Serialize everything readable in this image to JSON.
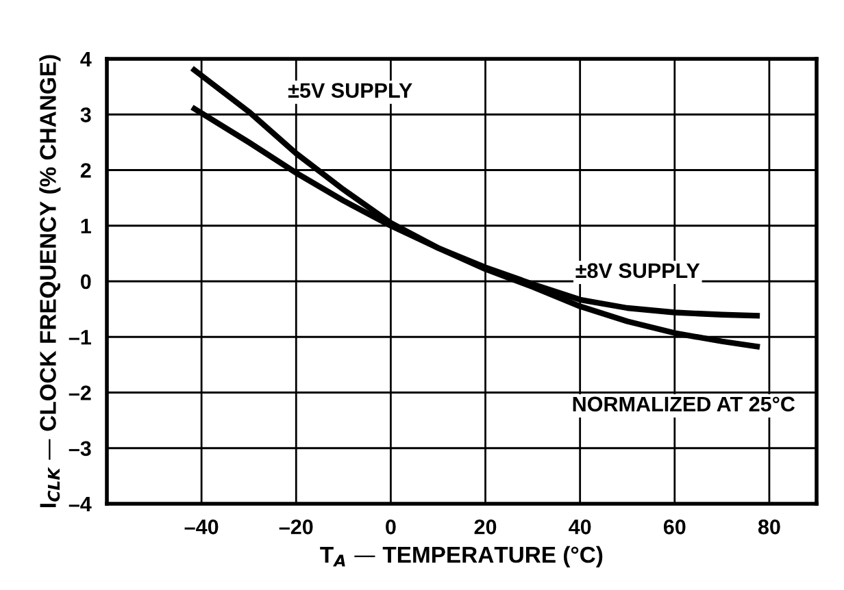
{
  "chart_data": {
    "type": "line",
    "xlabel": "T$_{A}$ — TEMPERATURE (°C)",
    "ylabel": "I$_{CLK}$ — CLOCK FREQUENCY (% CHANGE)",
    "annotations": [
      "NORMALIZED AT 25°C"
    ],
    "xlim": [
      -60,
      90
    ],
    "ylim": [
      -4,
      4
    ],
    "xticks": [
      {
        "value": -40,
        "label": "–40"
      },
      {
        "value": -20,
        "label": "–20"
      },
      0,
      20,
      40,
      60,
      80
    ],
    "yticks": [
      {
        "value": -4,
        "label": "–4"
      },
      {
        "value": -3,
        "label": "–3"
      },
      {
        "value": -2,
        "label": "–2"
      },
      {
        "value": -1,
        "label": "–1"
      },
      0,
      1,
      2,
      3,
      4
    ],
    "grid": true,
    "legend": false,
    "marker": "none",
    "line_style": "solid",
    "series": [
      {
        "name": "±5V SUPPLY",
        "color": "#000000",
        "x": [
          -42,
          -30,
          -20,
          -10,
          0,
          10,
          20,
          30,
          40,
          50,
          60,
          70,
          78
        ],
        "values": [
          3.83,
          3.05,
          2.3,
          1.65,
          1.05,
          0.6,
          0.22,
          -0.1,
          -0.45,
          -0.72,
          -0.93,
          -1.08,
          -1.18
        ]
      },
      {
        "name": "±8V SUPPLY",
        "color": "#000000",
        "x": [
          -42,
          -30,
          -20,
          -10,
          0,
          10,
          20,
          30,
          40,
          50,
          60,
          70,
          78
        ],
        "values": [
          3.13,
          2.5,
          1.95,
          1.45,
          1.0,
          0.6,
          0.25,
          -0.05,
          -0.33,
          -0.48,
          -0.56,
          -0.6,
          -0.62
        ]
      }
    ]
  }
}
